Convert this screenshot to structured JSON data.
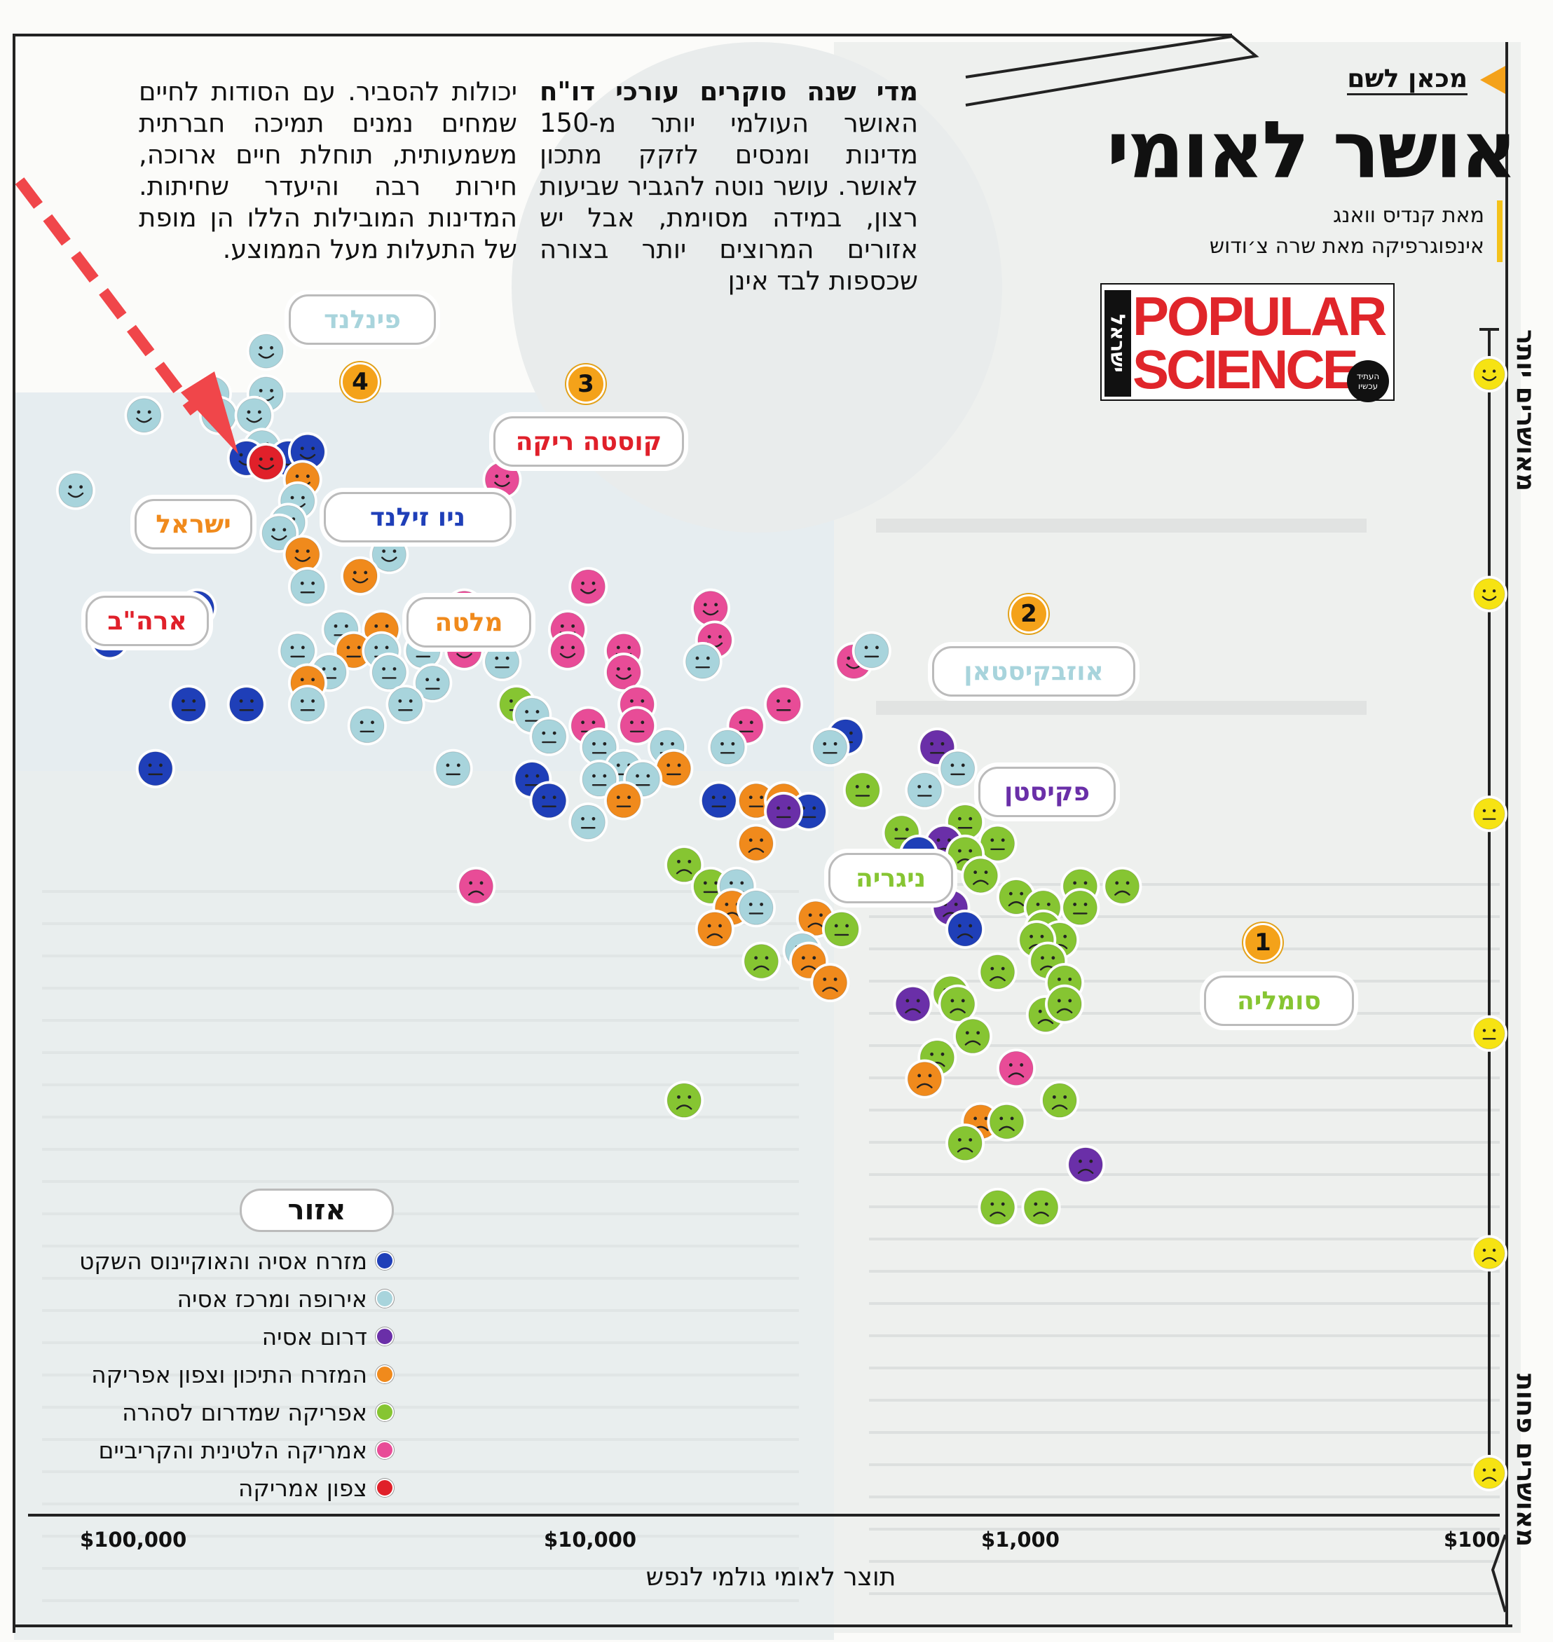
{
  "header": {
    "kicker": "מכאן לשם",
    "title": "אושר לאומי",
    "author": "מאת קנדיס וואנג",
    "infographic": "אינפוגרפיקה מאת שרה צ׳ודוש"
  },
  "logo": {
    "line1": "POPULAR",
    "line2": "SCIENCE",
    "side": "ישראל",
    "tagline": "העתיד עכשיו"
  },
  "intro": {
    "lead": "מדי שנה סוקרים עורכי דו\"ח",
    "text1": "האושר העולמי יותר מ-150 מדינות ומנסים לזקק מתכון לאושר. עושר נוטה להגביר שביעות רצון, במידה מסוימת, אבל יש אזורים המרוצים יותר בצורה שכספות לבד אינן",
    "text2": "יכולות להסביר. עם הסודות לחיים שמחים נמנים תמיכה חברתית משמעותית, תוחלת חיים ארוכה, חירות רבה והיעדר שחיתות. המדינות המובילות הללו הן מופת של התעלות מעל הממוצע."
  },
  "scale": {
    "top_label": "מאושרים יותר",
    "bottom_label": "מאושרים פחות"
  },
  "colors": {
    "east_asia_pacific": "#1f3fb8",
    "europe_central_asia": "#a8d4dc",
    "south_asia": "#6a2fa8",
    "mena": "#f08a1c",
    "sub_saharan_africa": "#86c532",
    "latin_america_caribbean": "#e84c97",
    "north_america": "#e0202a",
    "badge": "#f4a21a",
    "scale_face": "#f6e313"
  },
  "legend": {
    "title": "אזור",
    "items": [
      {
        "label": "מזרח אסיה והאוקיינוס השקט",
        "color": "#1f3fb8"
      },
      {
        "label": "אירופה ומרכז אסיה",
        "color": "#a8d4dc"
      },
      {
        "label": "דרום אסיה",
        "color": "#6a2fa8"
      },
      {
        "label": "המזרח התיכון וצפון אפריקה",
        "color": "#f08a1c"
      },
      {
        "label": "אפריקה שמדרום לסהרה",
        "color": "#86c532"
      },
      {
        "label": "אמריקה הלטינית והקריביים",
        "color": "#e84c97"
      },
      {
        "label": "צפון אמריקה",
        "color": "#e0202a"
      }
    ]
  },
  "callouts": {
    "finland": "פינלנד",
    "costa_rica": "קוסטה ריקה",
    "israel": "ישראל",
    "new_zealand": "ניו זילנד",
    "usa": "ארה\"ב",
    "malta": "מלטה",
    "uzbekistan": "אוזבקיסטאן",
    "pakistan": "פקיסטן",
    "nigeria": "ניגריה",
    "somalia": "סומליה"
  },
  "badges": {
    "b1": "1",
    "b2": "2",
    "b3": "3",
    "b4": "4"
  },
  "chart_data": {
    "type": "scatter",
    "xlabel": "תוצר לאומי גולמי לנפש",
    "ylabel": "",
    "x_scale": "log",
    "x_reversed": true,
    "x_ticks": [
      "$100,000",
      "$10,000",
      "$1,000",
      "$100"
    ],
    "x_tick_values": [
      100000,
      10000,
      1000,
      100
    ],
    "y_range_note": "happiness score, higher is happier",
    "ylim": [
      2.5,
      8
    ],
    "points": [
      {
        "gdp": 47000,
        "score": 7.8,
        "region": "europe_central_asia",
        "mood": "happy"
      },
      {
        "gdp": 62000,
        "score": 7.6,
        "region": "europe_central_asia",
        "mood": "happy"
      },
      {
        "gdp": 47000,
        "score": 7.6,
        "region": "europe_central_asia",
        "mood": "happy"
      },
      {
        "gdp": 88000,
        "score": 7.5,
        "region": "europe_central_asia",
        "mood": "happy"
      },
      {
        "gdp": 60000,
        "score": 7.5,
        "region": "europe_central_asia",
        "mood": "happy"
      },
      {
        "gdp": 50000,
        "score": 7.5,
        "region": "europe_central_asia",
        "mood": "happy"
      },
      {
        "gdp": 48000,
        "score": 7.35,
        "region": "europe_central_asia",
        "mood": "happy"
      },
      {
        "gdp": 42000,
        "score": 7.3,
        "region": "east_asia_pacific",
        "mood": "happy"
      },
      {
        "gdp": 52000,
        "score": 7.3,
        "region": "east_asia_pacific",
        "mood": "happy"
      },
      {
        "gdp": 47000,
        "score": 7.28,
        "region": "north_america",
        "mood": "happy"
      },
      {
        "gdp": 38000,
        "score": 7.33,
        "region": "east_asia_pacific",
        "mood": "happy"
      },
      {
        "gdp": 39000,
        "score": 7.2,
        "region": "mena",
        "mood": "happy"
      },
      {
        "gdp": 125000,
        "score": 7.15,
        "region": "europe_central_asia",
        "mood": "happy"
      },
      {
        "gdp": 40000,
        "score": 7.1,
        "region": "europe_central_asia",
        "mood": "happy"
      },
      {
        "gdp": 42000,
        "score": 7.0,
        "region": "europe_central_asia",
        "mood": "happy"
      },
      {
        "gdp": 44000,
        "score": 6.95,
        "region": "europe_central_asia",
        "mood": "happy"
      },
      {
        "gdp": 66000,
        "score": 6.95,
        "region": "north_america",
        "mood": "happy"
      },
      {
        "gdp": 39000,
        "score": 6.85,
        "region": "mena",
        "mood": "happy"
      },
      {
        "gdp": 25000,
        "score": 6.85,
        "region": "europe_central_asia",
        "mood": "happy"
      },
      {
        "gdp": 29000,
        "score": 6.75,
        "region": "mena",
        "mood": "happy"
      },
      {
        "gdp": 38000,
        "score": 6.7,
        "region": "europe_central_asia",
        "mood": "neutral"
      },
      {
        "gdp": 14000,
        "score": 7.2,
        "region": "latin_america_caribbean",
        "mood": "happy"
      },
      {
        "gdp": 9000,
        "score": 6.7,
        "region": "latin_america_caribbean",
        "mood": "happy"
      },
      {
        "gdp": 67000,
        "score": 6.6,
        "region": "east_asia_pacific",
        "mood": "neutral"
      },
      {
        "gdp": 17000,
        "score": 6.6,
        "region": "latin_america_caribbean",
        "mood": "happy"
      },
      {
        "gdp": 4800,
        "score": 6.6,
        "region": "latin_america_caribbean",
        "mood": "happy"
      },
      {
        "gdp": 105000,
        "score": 6.55,
        "region": "mena",
        "mood": "neutral"
      },
      {
        "gdp": 105000,
        "score": 6.45,
        "region": "east_asia_pacific",
        "mood": "neutral"
      },
      {
        "gdp": 32000,
        "score": 6.5,
        "region": "europe_central_asia",
        "mood": "neutral"
      },
      {
        "gdp": 26000,
        "score": 6.5,
        "region": "mena",
        "mood": "neutral"
      },
      {
        "gdp": 17000,
        "score": 6.5,
        "region": "latin_america_caribbean",
        "mood": "happy"
      },
      {
        "gdp": 10000,
        "score": 6.5,
        "region": "latin_america_caribbean",
        "mood": "happy"
      },
      {
        "gdp": 4700,
        "score": 6.45,
        "region": "latin_america_caribbean",
        "mood": "happy"
      },
      {
        "gdp": 40000,
        "score": 6.4,
        "region": "europe_central_asia",
        "mood": "neutral"
      },
      {
        "gdp": 30000,
        "score": 6.4,
        "region": "mena",
        "mood": "neutral"
      },
      {
        "gdp": 26000,
        "score": 6.4,
        "region": "europe_central_asia",
        "mood": "neutral"
      },
      {
        "gdp": 21000,
        "score": 6.4,
        "region": "europe_central_asia",
        "mood": "neutral"
      },
      {
        "gdp": 17000,
        "score": 6.4,
        "region": "latin_america_caribbean",
        "mood": "happy"
      },
      {
        "gdp": 14000,
        "score": 6.35,
        "region": "europe_central_asia",
        "mood": "neutral"
      },
      {
        "gdp": 10000,
        "score": 6.4,
        "region": "latin_america_caribbean",
        "mood": "happy"
      },
      {
        "gdp": 7500,
        "score": 6.4,
        "region": "latin_america_caribbean",
        "mood": "happy"
      },
      {
        "gdp": 5000,
        "score": 6.35,
        "region": "europe_central_asia",
        "mood": "neutral"
      },
      {
        "gdp": 2300,
        "score": 6.35,
        "region": "latin_america_caribbean",
        "mood": "happy"
      },
      {
        "gdp": 2100,
        "score": 6.4,
        "region": "europe_central_asia",
        "mood": "neutral"
      },
      {
        "gdp": 34000,
        "score": 6.3,
        "region": "europe_central_asia",
        "mood": "neutral"
      },
      {
        "gdp": 38000,
        "score": 6.25,
        "region": "mena",
        "mood": "neutral"
      },
      {
        "gdp": 25000,
        "score": 6.3,
        "region": "europe_central_asia",
        "mood": "neutral"
      },
      {
        "gdp": 20000,
        "score": 6.25,
        "region": "europe_central_asia",
        "mood": "neutral"
      },
      {
        "gdp": 7500,
        "score": 6.3,
        "region": "latin_america_caribbean",
        "mood": "happy"
      },
      {
        "gdp": 70000,
        "score": 6.15,
        "region": "east_asia_pacific",
        "mood": "neutral"
      },
      {
        "gdp": 52000,
        "score": 6.15,
        "region": "east_asia_pacific",
        "mood": "neutral"
      },
      {
        "gdp": 38000,
        "score": 6.15,
        "region": "europe_central_asia",
        "mood": "neutral"
      },
      {
        "gdp": 23000,
        "score": 6.15,
        "region": "europe_central_asia",
        "mood": "neutral"
      },
      {
        "gdp": 13000,
        "score": 6.15,
        "region": "sub_saharan_africa",
        "mood": "neutral"
      },
      {
        "gdp": 7000,
        "score": 6.15,
        "region": "latin_america_caribbean",
        "mood": "neutral"
      },
      {
        "gdp": 3300,
        "score": 6.15,
        "region": "latin_america_caribbean",
        "mood": "neutral"
      },
      {
        "gdp": 12000,
        "score": 6.1,
        "region": "europe_central_asia",
        "mood": "neutral"
      },
      {
        "gdp": 28000,
        "score": 6.05,
        "region": "europe_central_asia",
        "mood": "neutral"
      },
      {
        "gdp": 9000,
        "score": 6.05,
        "region": "latin_america_caribbean",
        "mood": "neutral"
      },
      {
        "gdp": 7000,
        "score": 6.05,
        "region": "latin_america_caribbean",
        "mood": "neutral"
      },
      {
        "gdp": 4000,
        "score": 6.05,
        "region": "latin_america_caribbean",
        "mood": "neutral"
      },
      {
        "gdp": 2400,
        "score": 6.0,
        "region": "east_asia_pacific",
        "mood": "neutral"
      },
      {
        "gdp": 11000,
        "score": 6.0,
        "region": "europe_central_asia",
        "mood": "neutral"
      },
      {
        "gdp": 8500,
        "score": 5.95,
        "region": "europe_central_asia",
        "mood": "neutral"
      },
      {
        "gdp": 6000,
        "score": 5.95,
        "region": "europe_central_asia",
        "mood": "neutral"
      },
      {
        "gdp": 4400,
        "score": 5.95,
        "region": "europe_central_asia",
        "mood": "neutral"
      },
      {
        "gdp": 2600,
        "score": 5.95,
        "region": "europe_central_asia",
        "mood": "neutral"
      },
      {
        "gdp": 1500,
        "score": 5.95,
        "region": "south_asia",
        "mood": "neutral"
      },
      {
        "gdp": 1350,
        "score": 5.85,
        "region": "europe_central_asia",
        "mood": "neutral"
      },
      {
        "gdp": 83000,
        "score": 5.85,
        "region": "east_asia_pacific",
        "mood": "neutral"
      },
      {
        "gdp": 18000,
        "score": 5.85,
        "region": "europe_central_asia",
        "mood": "neutral"
      },
      {
        "gdp": 7500,
        "score": 5.85,
        "region": "europe_central_asia",
        "mood": "neutral"
      },
      {
        "gdp": 5800,
        "score": 5.85,
        "region": "mena",
        "mood": "neutral"
      },
      {
        "gdp": 12000,
        "score": 5.8,
        "region": "east_asia_pacific",
        "mood": "neutral"
      },
      {
        "gdp": 8500,
        "score": 5.8,
        "region": "europe_central_asia",
        "mood": "neutral"
      },
      {
        "gdp": 6800,
        "score": 5.8,
        "region": "europe_central_asia",
        "mood": "neutral"
      },
      {
        "gdp": 2200,
        "score": 5.75,
        "region": "sub_saharan_africa",
        "mood": "neutral"
      },
      {
        "gdp": 1600,
        "score": 5.75,
        "region": "europe_central_asia",
        "mood": "neutral"
      },
      {
        "gdp": 4600,
        "score": 5.7,
        "region": "east_asia_pacific",
        "mood": "neutral"
      },
      {
        "gdp": 3800,
        "score": 5.7,
        "region": "mena",
        "mood": "neutral"
      },
      {
        "gdp": 3300,
        "score": 5.7,
        "region": "mena",
        "mood": "neutral"
      },
      {
        "gdp": 11000,
        "score": 5.7,
        "region": "east_asia_pacific",
        "mood": "neutral"
      },
      {
        "gdp": 7500,
        "score": 5.7,
        "region": "mena",
        "mood": "neutral"
      },
      {
        "gdp": 2900,
        "score": 5.65,
        "region": "east_asia_pacific",
        "mood": "neutral"
      },
      {
        "gdp": 3300,
        "score": 5.65,
        "region": "south_asia",
        "mood": "neutral"
      },
      {
        "gdp": 9000,
        "score": 5.6,
        "region": "europe_central_asia",
        "mood": "neutral"
      },
      {
        "gdp": 1300,
        "score": 5.6,
        "region": "sub_saharan_africa",
        "mood": "neutral"
      },
      {
        "gdp": 1800,
        "score": 5.55,
        "region": "sub_saharan_africa",
        "mood": "neutral"
      },
      {
        "gdp": 1450,
        "score": 5.5,
        "region": "south_asia",
        "mood": "sad"
      },
      {
        "gdp": 1100,
        "score": 5.5,
        "region": "sub_saharan_africa",
        "mood": "neutral"
      },
      {
        "gdp": 3800,
        "score": 5.5,
        "region": "mena",
        "mood": "sad"
      },
      {
        "gdp": 1650,
        "score": 5.45,
        "region": "east_asia_pacific",
        "mood": "neutral"
      },
      {
        "gdp": 1300,
        "score": 5.45,
        "region": "sub_saharan_africa",
        "mood": "sad"
      },
      {
        "gdp": 5500,
        "score": 5.4,
        "region": "sub_saharan_africa",
        "mood": "sad"
      },
      {
        "gdp": 16000,
        "score": 5.3,
        "region": "latin_america_caribbean",
        "mood": "sad"
      },
      {
        "gdp": 4800,
        "score": 5.3,
        "region": "sub_saharan_africa",
        "mood": "neutral"
      },
      {
        "gdp": 4200,
        "score": 5.3,
        "region": "europe_central_asia",
        "mood": "neutral"
      },
      {
        "gdp": 1500,
        "score": 5.35,
        "region": "east_asia_pacific",
        "mood": "neutral"
      },
      {
        "gdp": 1200,
        "score": 5.35,
        "region": "sub_saharan_africa",
        "mood": "sad"
      },
      {
        "gdp": 720,
        "score": 5.3,
        "region": "sub_saharan_africa",
        "mood": "sad"
      },
      {
        "gdp": 580,
        "score": 5.3,
        "region": "sub_saharan_africa",
        "mood": "sad"
      },
      {
        "gdp": 1000,
        "score": 5.25,
        "region": "sub_saharan_africa",
        "mood": "sad"
      },
      {
        "gdp": 4300,
        "score": 5.2,
        "region": "mena",
        "mood": "sad"
      },
      {
        "gdp": 3800,
        "score": 5.2,
        "region": "europe_central_asia",
        "mood": "neutral"
      },
      {
        "gdp": 1400,
        "score": 5.2,
        "region": "south_asia",
        "mood": "sad"
      },
      {
        "gdp": 870,
        "score": 5.2,
        "region": "sub_saharan_africa",
        "mood": "sad"
      },
      {
        "gdp": 2800,
        "score": 5.15,
        "region": "mena",
        "mood": "sad"
      },
      {
        "gdp": 720,
        "score": 5.2,
        "region": "sub_saharan_africa",
        "mood": "neutral"
      },
      {
        "gdp": 4700,
        "score": 5.1,
        "region": "mena",
        "mood": "sad"
      },
      {
        "gdp": 2450,
        "score": 5.1,
        "region": "sub_saharan_africa",
        "mood": "neutral"
      },
      {
        "gdp": 870,
        "score": 5.1,
        "region": "sub_saharan_africa",
        "mood": "sad"
      },
      {
        "gdp": 1300,
        "score": 5.1,
        "region": "east_asia_pacific",
        "mood": "sad"
      },
      {
        "gdp": 800,
        "score": 5.05,
        "region": "sub_saharan_africa",
        "mood": "sad"
      },
      {
        "gdp": 3000,
        "score": 5.0,
        "region": "europe_central_asia",
        "mood": "neutral"
      },
      {
        "gdp": 900,
        "score": 5.05,
        "region": "sub_saharan_africa",
        "mood": "sad"
      },
      {
        "gdp": 2900,
        "score": 4.95,
        "region": "mena",
        "mood": "sad"
      },
      {
        "gdp": 3700,
        "score": 4.95,
        "region": "sub_saharan_africa",
        "mood": "sad"
      },
      {
        "gdp": 850,
        "score": 4.95,
        "region": "sub_saharan_africa",
        "mood": "sad"
      },
      {
        "gdp": 1100,
        "score": 4.9,
        "region": "sub_saharan_africa",
        "mood": "sad"
      },
      {
        "gdp": 780,
        "score": 4.85,
        "region": "sub_saharan_africa",
        "mood": "sad"
      },
      {
        "gdp": 2600,
        "score": 4.85,
        "region": "mena",
        "mood": "sad"
      },
      {
        "gdp": 1400,
        "score": 4.8,
        "region": "sub_saharan_africa",
        "mood": "sad"
      },
      {
        "gdp": 1700,
        "score": 4.75,
        "region": "south_asia",
        "mood": "sad"
      },
      {
        "gdp": 1350,
        "score": 4.75,
        "region": "sub_saharan_africa",
        "mood": "sad"
      },
      {
        "gdp": 860,
        "score": 4.7,
        "region": "sub_saharan_africa",
        "mood": "sad"
      },
      {
        "gdp": 780,
        "score": 4.75,
        "region": "sub_saharan_africa",
        "mood": "sad"
      },
      {
        "gdp": 1250,
        "score": 4.6,
        "region": "sub_saharan_africa",
        "mood": "sad"
      },
      {
        "gdp": 1500,
        "score": 4.5,
        "region": "sub_saharan_africa",
        "mood": "sad"
      },
      {
        "gdp": 1000,
        "score": 4.45,
        "region": "latin_america_caribbean",
        "mood": "sad"
      },
      {
        "gdp": 1600,
        "score": 4.4,
        "region": "mena",
        "mood": "sad"
      },
      {
        "gdp": 5500,
        "score": 4.3,
        "region": "sub_saharan_africa",
        "mood": "sad"
      },
      {
        "gdp": 800,
        "score": 4.3,
        "region": "sub_saharan_africa",
        "mood": "sad"
      },
      {
        "gdp": 1200,
        "score": 4.2,
        "region": "mena",
        "mood": "sad"
      },
      {
        "gdp": 1050,
        "score": 4.2,
        "region": "sub_saharan_africa",
        "mood": "sad"
      },
      {
        "gdp": 1300,
        "score": 4.1,
        "region": "sub_saharan_africa",
        "mood": "sad"
      },
      {
        "gdp": 700,
        "score": 4.0,
        "region": "south_asia",
        "mood": "sad"
      },
      {
        "gdp": 1100,
        "score": 3.8,
        "region": "sub_saharan_africa",
        "mood": "sad"
      },
      {
        "gdp": 880,
        "score": 3.8,
        "region": "sub_saharan_africa",
        "mood": "sad"
      }
    ]
  }
}
